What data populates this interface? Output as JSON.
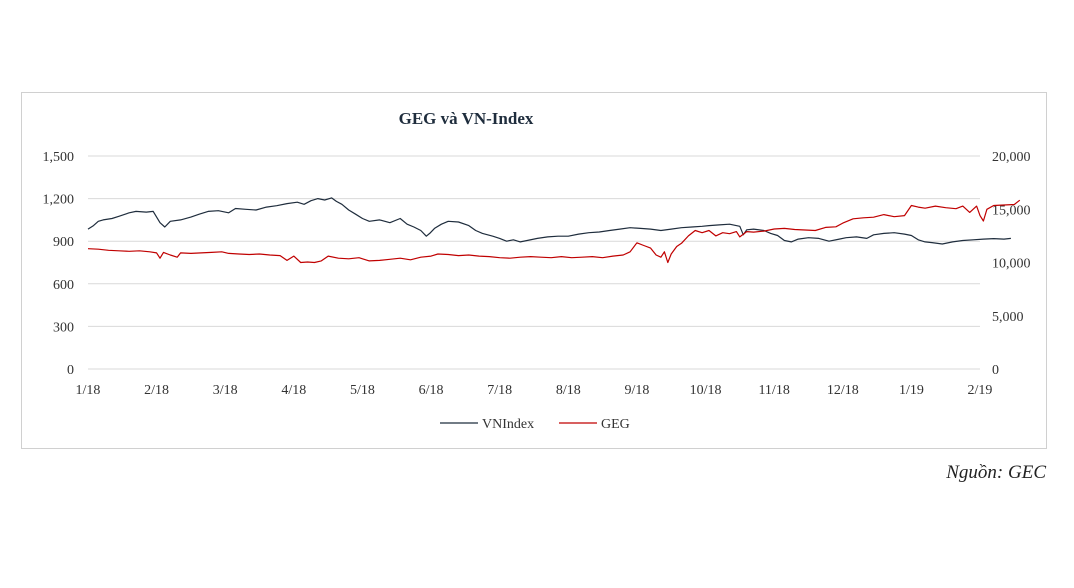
{
  "source_note": "Nguồn: GEC",
  "chart_data": {
    "type": "line",
    "title": "GEG và VN-Index",
    "x_labels": [
      "1/18",
      "2/18",
      "3/18",
      "4/18",
      "5/18",
      "6/18",
      "7/18",
      "8/18",
      "9/18",
      "10/18",
      "11/18",
      "12/18",
      "1/19",
      "2/19"
    ],
    "y_left": {
      "ticks": [
        "0",
        "300",
        "600",
        "900",
        "1,200",
        "1,500"
      ],
      "lim": [
        0,
        1500
      ]
    },
    "y_right": {
      "ticks": [
        "0",
        "5,000",
        "10,000",
        "15,000",
        "20,000"
      ],
      "lim": [
        0,
        20000
      ]
    },
    "grid": true,
    "legend_position": "bottom",
    "series": [
      {
        "name": "VNIndex",
        "axis": "left",
        "color": "#1f2d3d",
        "points": [
          [
            0.0,
            985
          ],
          [
            0.08,
            1010
          ],
          [
            0.15,
            1040
          ],
          [
            0.22,
            1050
          ],
          [
            0.35,
            1060
          ],
          [
            0.45,
            1075
          ],
          [
            0.6,
            1100
          ],
          [
            0.7,
            1110
          ],
          [
            0.85,
            1105
          ],
          [
            0.95,
            1110
          ],
          [
            1.05,
            1030
          ],
          [
            1.12,
            1000
          ],
          [
            1.2,
            1040
          ],
          [
            1.35,
            1050
          ],
          [
            1.5,
            1070
          ],
          [
            1.62,
            1090
          ],
          [
            1.75,
            1110
          ],
          [
            1.9,
            1115
          ],
          [
            2.05,
            1100
          ],
          [
            2.15,
            1130
          ],
          [
            2.3,
            1125
          ],
          [
            2.45,
            1120
          ],
          [
            2.6,
            1140
          ],
          [
            2.75,
            1150
          ],
          [
            2.9,
            1165
          ],
          [
            3.05,
            1175
          ],
          [
            3.15,
            1160
          ],
          [
            3.25,
            1185
          ],
          [
            3.35,
            1200
          ],
          [
            3.45,
            1190
          ],
          [
            3.55,
            1205
          ],
          [
            3.62,
            1180
          ],
          [
            3.7,
            1160
          ],
          [
            3.8,
            1120
          ],
          [
            3.9,
            1090
          ],
          [
            4.0,
            1060
          ],
          [
            4.1,
            1040
          ],
          [
            4.25,
            1050
          ],
          [
            4.4,
            1030
          ],
          [
            4.55,
            1060
          ],
          [
            4.65,
            1020
          ],
          [
            4.75,
            1000
          ],
          [
            4.85,
            975
          ],
          [
            4.93,
            935
          ],
          [
            4.98,
            955
          ],
          [
            5.05,
            990
          ],
          [
            5.15,
            1020
          ],
          [
            5.25,
            1040
          ],
          [
            5.4,
            1035
          ],
          [
            5.55,
            1010
          ],
          [
            5.65,
            975
          ],
          [
            5.75,
            955
          ],
          [
            5.9,
            935
          ],
          [
            6.0,
            920
          ],
          [
            6.1,
            900
          ],
          [
            6.2,
            910
          ],
          [
            6.3,
            895
          ],
          [
            6.4,
            905
          ],
          [
            6.55,
            920
          ],
          [
            6.7,
            930
          ],
          [
            6.85,
            935
          ],
          [
            7.0,
            935
          ],
          [
            7.15,
            950
          ],
          [
            7.3,
            960
          ],
          [
            7.45,
            965
          ],
          [
            7.6,
            975
          ],
          [
            7.75,
            985
          ],
          [
            7.9,
            995
          ],
          [
            8.05,
            990
          ],
          [
            8.2,
            985
          ],
          [
            8.35,
            975
          ],
          [
            8.5,
            985
          ],
          [
            8.65,
            995
          ],
          [
            8.8,
            1000
          ],
          [
            8.95,
            1005
          ],
          [
            9.05,
            1010
          ],
          [
            9.2,
            1015
          ],
          [
            9.35,
            1020
          ],
          [
            9.5,
            1005
          ],
          [
            9.55,
            945
          ],
          [
            9.6,
            980
          ],
          [
            9.7,
            985
          ],
          [
            9.85,
            975
          ],
          [
            9.95,
            955
          ],
          [
            10.05,
            940
          ],
          [
            10.15,
            905
          ],
          [
            10.25,
            895
          ],
          [
            10.35,
            915
          ],
          [
            10.5,
            925
          ],
          [
            10.65,
            920
          ],
          [
            10.8,
            900
          ],
          [
            10.95,
            915
          ],
          [
            11.05,
            925
          ],
          [
            11.2,
            930
          ],
          [
            11.35,
            920
          ],
          [
            11.45,
            945
          ],
          [
            11.6,
            955
          ],
          [
            11.75,
            960
          ],
          [
            11.9,
            950
          ],
          [
            12.0,
            940
          ],
          [
            12.1,
            910
          ],
          [
            12.2,
            895
          ],
          [
            12.3,
            890
          ],
          [
            12.45,
            880
          ],
          [
            12.6,
            895
          ],
          [
            12.75,
            905
          ],
          [
            12.9,
            910
          ],
          [
            13.05,
            915
          ],
          [
            13.2,
            918
          ],
          [
            13.35,
            915
          ],
          [
            13.45,
            920
          ]
        ]
      },
      {
        "name": "GEG",
        "axis": "right",
        "color": "#c00000",
        "points": [
          [
            0.0,
            11300
          ],
          [
            0.15,
            11250
          ],
          [
            0.3,
            11150
          ],
          [
            0.45,
            11100
          ],
          [
            0.6,
            11050
          ],
          [
            0.75,
            11100
          ],
          [
            0.9,
            11000
          ],
          [
            1.0,
            10900
          ],
          [
            1.05,
            10400
          ],
          [
            1.1,
            10950
          ],
          [
            1.2,
            10700
          ],
          [
            1.3,
            10500
          ],
          [
            1.35,
            10900
          ],
          [
            1.5,
            10850
          ],
          [
            1.65,
            10900
          ],
          [
            1.8,
            10950
          ],
          [
            1.95,
            11000
          ],
          [
            2.05,
            10850
          ],
          [
            2.2,
            10800
          ],
          [
            2.35,
            10750
          ],
          [
            2.5,
            10800
          ],
          [
            2.65,
            10700
          ],
          [
            2.8,
            10650
          ],
          [
            2.9,
            10200
          ],
          [
            3.0,
            10600
          ],
          [
            3.1,
            10000
          ],
          [
            3.2,
            10050
          ],
          [
            3.3,
            10000
          ],
          [
            3.4,
            10150
          ],
          [
            3.5,
            10600
          ],
          [
            3.65,
            10400
          ],
          [
            3.8,
            10350
          ],
          [
            3.95,
            10450
          ],
          [
            4.0,
            10350
          ],
          [
            4.1,
            10150
          ],
          [
            4.25,
            10200
          ],
          [
            4.4,
            10300
          ],
          [
            4.55,
            10400
          ],
          [
            4.7,
            10250
          ],
          [
            4.85,
            10500
          ],
          [
            5.0,
            10600
          ],
          [
            5.1,
            10800
          ],
          [
            5.25,
            10750
          ],
          [
            5.4,
            10650
          ],
          [
            5.55,
            10700
          ],
          [
            5.7,
            10600
          ],
          [
            5.85,
            10550
          ],
          [
            6.0,
            10450
          ],
          [
            6.15,
            10400
          ],
          [
            6.3,
            10500
          ],
          [
            6.45,
            10550
          ],
          [
            6.6,
            10500
          ],
          [
            6.75,
            10450
          ],
          [
            6.9,
            10550
          ],
          [
            7.05,
            10450
          ],
          [
            7.2,
            10500
          ],
          [
            7.35,
            10550
          ],
          [
            7.5,
            10450
          ],
          [
            7.65,
            10600
          ],
          [
            7.8,
            10700
          ],
          [
            7.9,
            11000
          ],
          [
            8.0,
            11850
          ],
          [
            8.1,
            11600
          ],
          [
            8.2,
            11350
          ],
          [
            8.28,
            10700
          ],
          [
            8.35,
            10500
          ],
          [
            8.4,
            11000
          ],
          [
            8.45,
            10000
          ],
          [
            8.5,
            10800
          ],
          [
            8.58,
            11500
          ],
          [
            8.65,
            11800
          ],
          [
            8.75,
            12500
          ],
          [
            8.85,
            13000
          ],
          [
            8.95,
            12800
          ],
          [
            9.05,
            13000
          ],
          [
            9.15,
            12500
          ],
          [
            9.25,
            12800
          ],
          [
            9.35,
            12700
          ],
          [
            9.45,
            12900
          ],
          [
            9.5,
            12400
          ],
          [
            9.6,
            12900
          ],
          [
            9.7,
            12850
          ],
          [
            9.85,
            12950
          ],
          [
            10.0,
            13150
          ],
          [
            10.15,
            13200
          ],
          [
            10.3,
            13100
          ],
          [
            10.45,
            13050
          ],
          [
            10.6,
            13000
          ],
          [
            10.75,
            13300
          ],
          [
            10.9,
            13350
          ],
          [
            11.0,
            13700
          ],
          [
            11.15,
            14100
          ],
          [
            11.3,
            14200
          ],
          [
            11.45,
            14250
          ],
          [
            11.6,
            14500
          ],
          [
            11.75,
            14300
          ],
          [
            11.9,
            14400
          ],
          [
            12.0,
            15350
          ],
          [
            12.1,
            15200
          ],
          [
            12.2,
            15100
          ],
          [
            12.35,
            15300
          ],
          [
            12.5,
            15150
          ],
          [
            12.65,
            15050
          ],
          [
            12.75,
            15300
          ],
          [
            12.85,
            14700
          ],
          [
            12.95,
            15300
          ],
          [
            13.0,
            14400
          ],
          [
            13.05,
            13900
          ],
          [
            13.1,
            15000
          ],
          [
            13.2,
            15350
          ],
          [
            13.35,
            15400
          ],
          [
            13.5,
            15450
          ],
          [
            13.58,
            15850
          ]
        ]
      }
    ]
  }
}
